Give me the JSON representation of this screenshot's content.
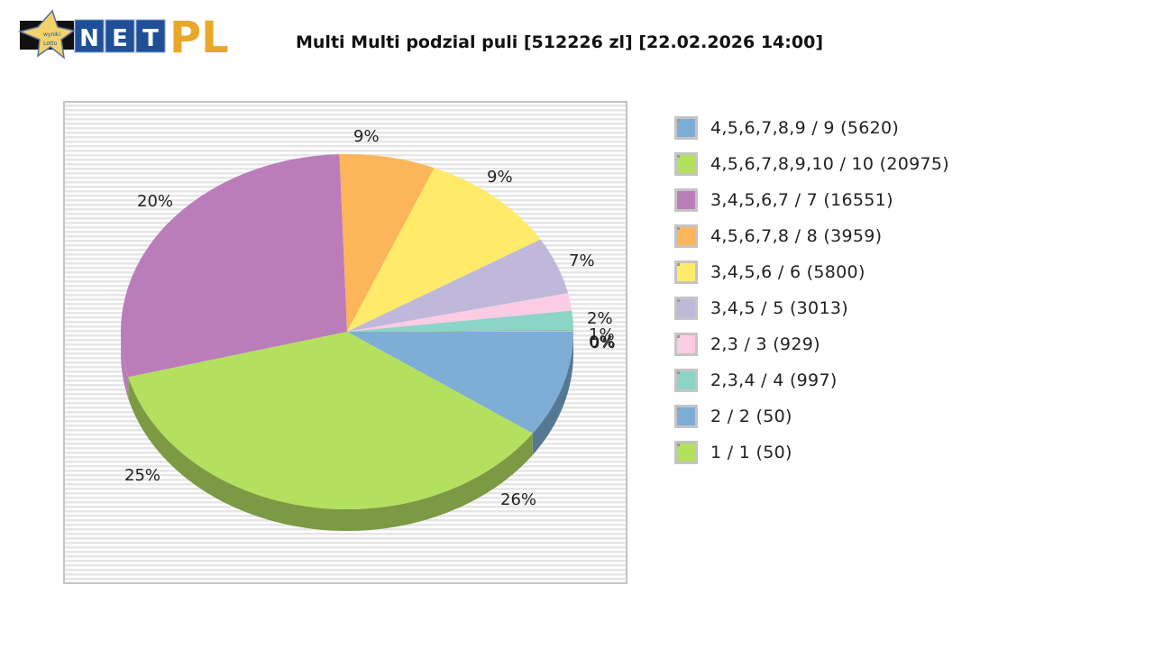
{
  "header": {
    "logo": {
      "star_text_line1": "wyniki",
      "star_text_line2": "Lotto",
      "boxes": [
        "N",
        "E",
        "T"
      ],
      "suffix": "PL"
    },
    "title": "Multi Multi podzial puli [512226 zl] [22.02.2026 14:00]"
  },
  "colors": {
    "blue": "#7eaed5",
    "green": "#b3e05f",
    "purple": "#bb7dba",
    "orange": "#fdb55a",
    "yellow": "#ffeb69",
    "lavender": "#bfb8da",
    "pink": "#fccbe4",
    "teal": "#8bd4c6",
    "blue_shadow": "#557993",
    "green_shadow": "#7b9a43",
    "logo_blue": "#1f4f96",
    "logo_gold": "#e8a92a"
  },
  "chart_data": {
    "type": "pie",
    "title": "Multi Multi podzial puli [512226 zl] [22.02.2026 14:00]",
    "total": 512226,
    "legend_position": "right",
    "categories": [
      "4,5,6,7,8,9 / 9",
      "4,5,6,7,8,9,10 / 10",
      "3,4,5,6,7 / 7",
      "4,5,6,7,8 / 8",
      "3,4,5,6 / 6",
      "3,4,5 / 5",
      "2,3 / 3",
      "2,3,4 / 4",
      "2 / 2",
      "1 / 1"
    ],
    "series": [
      {
        "name": "winners_count",
        "values": [
          5620,
          20975,
          16551,
          3959,
          5800,
          3013,
          929,
          997,
          50,
          50
        ]
      }
    ],
    "slice_percentages": [
      26,
      25,
      20,
      9,
      9,
      7,
      2,
      1,
      0,
      0
    ],
    "slice_labels": [
      "26%",
      "25%",
      "20%",
      "9%",
      "9%",
      "7%",
      "2%",
      "1%",
      "0%",
      "0%"
    ]
  },
  "legend": {
    "items": [
      {
        "label": "4,5,6,7,8,9 / 9 (5620)",
        "color": "#7eaed5"
      },
      {
        "label": "4,5,6,7,8,9,10 / 10 (20975)",
        "color": "#b3e05f"
      },
      {
        "label": "3,4,5,6,7 / 7 (16551)",
        "color": "#bb7dba"
      },
      {
        "label": "4,5,6,7,8 / 8 (3959)",
        "color": "#fdb55a"
      },
      {
        "label": "3,4,5,6 / 6 (5800)",
        "color": "#ffeb69"
      },
      {
        "label": "3,4,5 / 5 (3013)",
        "color": "#bfb8da"
      },
      {
        "label": "2,3 / 3 (929)",
        "color": "#fccbe4"
      },
      {
        "label": "2,3,4 / 4 (997)",
        "color": "#8bd4c6"
      },
      {
        "label": "2 / 2 (50)",
        "color": "#7eaed5"
      },
      {
        "label": "1 / 1 (50)",
        "color": "#b3e05f"
      }
    ]
  }
}
